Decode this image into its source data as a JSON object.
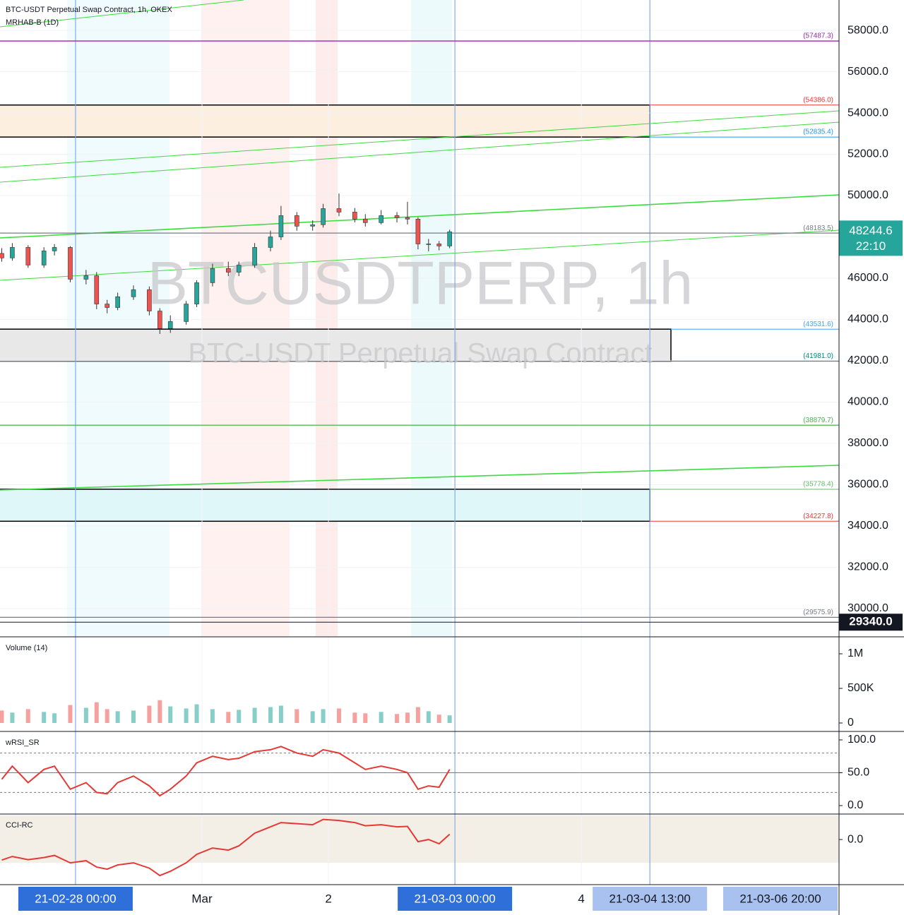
{
  "chart_data": [
    {
      "type": "candlestick",
      "title": "BTC-USDT Perpetual Swap Contract, 1h, OKEX",
      "subtitle": "MRHAB-B (1D)",
      "watermark": "BTCUSDTPERP, 1h",
      "watermark_subtitle": "BTC-USDT Perpetual Swap Contract",
      "x": [
        "21-02-27 10:00",
        "21-02-27 12:00",
        "21-02-27 15:00",
        "21-02-27 18:00",
        "21-02-27 20:00",
        "21-02-27 23:00",
        "21-02-28 02:00",
        "21-02-28 04:00",
        "21-02-28 06:00",
        "21-02-28 08:00",
        "21-02-28 11:00",
        "21-02-28 14:00",
        "21-02-28 16:00",
        "21-02-28 18:00",
        "21-02-28 21:00",
        "21-02-28 23:00",
        "21-03-01 02:00",
        "21-03-01 05:00",
        "21-03-01 07:00",
        "21-03-01 10:00",
        "21-03-01 13:00",
        "21-03-01 15:00",
        "21-03-01 18:00",
        "21-03-01 21:00",
        "21-03-01 23:00",
        "21-03-02 02:00",
        "21-03-02 05:00",
        "21-03-02 07:00",
        "21-03-02 10:00",
        "21-03-02 13:00",
        "21-03-02 15:00",
        "21-03-02 17:00",
        "21-03-02 19:00",
        "21-03-02 21:00",
        "21-03-02 23:00"
      ],
      "open": [
        47200,
        46980,
        47490,
        46635,
        47320,
        47490,
        45950,
        46120,
        44750,
        44580,
        45100,
        45440,
        44410,
        43560,
        43900,
        44750,
        45780,
        46470,
        46290,
        46630,
        47490,
        48000,
        49030,
        48520,
        48590,
        49370,
        49200,
        48860,
        48690,
        49030,
        48930,
        48860,
        47660,
        47660,
        47560
      ],
      "high": [
        47450,
        47700,
        47600,
        47500,
        47650,
        47550,
        46400,
        46300,
        44950,
        45300,
        45650,
        45600,
        44550,
        44200,
        44900,
        45900,
        46700,
        46800,
        46800,
        47700,
        48300,
        49500,
        49200,
        48800,
        49600,
        50100,
        49400,
        49100,
        49300,
        49200,
        49700,
        48950,
        47900,
        47800,
        48350
      ],
      "low": [
        46800,
        46850,
        46500,
        46500,
        47100,
        45800,
        45700,
        44500,
        44300,
        44450,
        44950,
        44200,
        43300,
        43350,
        43750,
        44600,
        45600,
        46100,
        46100,
        46500,
        47300,
        47850,
        48300,
        48300,
        48450,
        49000,
        48700,
        48500,
        48600,
        48700,
        48600,
        47400,
        47300,
        47350,
        47450
      ],
      "close": [
        46980,
        47490,
        46635,
        47320,
        47490,
        45950,
        46120,
        44750,
        44580,
        45100,
        45440,
        44410,
        43560,
        43900,
        44750,
        45780,
        46470,
        46290,
        46630,
        47490,
        48000,
        49030,
        48520,
        48590,
        49370,
        49200,
        48860,
        48690,
        49030,
        48930,
        48860,
        47660,
        47660,
        47560,
        48244.6
      ],
      "up_color": "#26a69a",
      "down_color": "#ef5350",
      "xlim": [
        "21-02-27 09:40",
        "21-03-06 00:54"
      ],
      "xticks": [
        "21-02-28 00:00",
        {
          "value": "21-03-01 00:00",
          "label": "Mar"
        },
        {
          "value": "21-03-02 00:00",
          "label": "2"
        },
        "21-03-03 00:00",
        {
          "value": "21-03-04 00:00",
          "label": "4"
        },
        "21-03-04 13:00"
      ],
      "time_label": "21-03-06 20:00",
      "vertical_lines": [
        "21-02-28 00:00",
        "21-03-03 00:00",
        "21-03-04 13:00"
      ],
      "ylim": [
        28665,
        59472
      ],
      "yticks": [
        {
          "value": 30000,
          "label": "30000.0"
        },
        {
          "value": 32000,
          "label": "32000.0"
        },
        {
          "value": 34000,
          "label": "34000.0"
        },
        {
          "value": 36000,
          "label": "36000.0"
        },
        {
          "value": 38000,
          "label": "38000.0"
        },
        {
          "value": 40000,
          "label": "40000.0"
        },
        {
          "value": 42000,
          "label": "42000.0"
        },
        {
          "value": 44000,
          "label": "44000.0"
        },
        {
          "value": 46000,
          "label": "46000.0"
        },
        {
          "value": 48000,
          "label": "48000.0"
        },
        {
          "value": 50000,
          "label": "50000.0"
        },
        {
          "value": 52000,
          "label": "52000.0"
        },
        {
          "value": 54000,
          "label": "54000.0"
        },
        {
          "value": 56000,
          "label": "56000.0"
        },
        {
          "value": 58000,
          "label": "58000.0"
        }
      ],
      "grid": true,
      "levels": [
        {
          "value": 57487.3,
          "label": "(57487.3)",
          "color": "#9c27b0"
        },
        {
          "value": 54386.0,
          "label": "(54386.0)",
          "color": "#e53935"
        },
        {
          "value": 52835.4,
          "label": "(52835.4)",
          "color": "#2196f3"
        },
        {
          "value": 48183.5,
          "label": "(48183.5)",
          "color": "#787b86"
        },
        {
          "value": 43531.6,
          "label": "(43531.6)",
          "color": "#42a5f5"
        },
        {
          "value": 41981.0,
          "label": "(41981.0)",
          "color": "#00897b"
        },
        {
          "value": 38879.7,
          "label": "(38879.7)",
          "color": "#4caf50"
        },
        {
          "value": 35778.4,
          "label": "(35778.4)",
          "color": "#66bb6a"
        },
        {
          "value": 34227.8,
          "label": "(34227.8)",
          "color": "#e53935"
        },
        {
          "value": 29575.9,
          "label": "(29575.9)",
          "color": "#787b86"
        }
      ],
      "zones": [
        {
          "low": 52835.4,
          "high": 54386.0,
          "end": "21-03-04 13:00",
          "color": "#fdefe0"
        },
        {
          "low": 41981.0,
          "high": 43531.6,
          "end": "21-03-04 17:00",
          "color": "#e8e8e8"
        },
        {
          "low": 34227.8,
          "high": 35778.4,
          "end": "21-03-04 13:00",
          "color": "#e0f7fa"
        }
      ],
      "last_price": 48244.6,
      "countdown": "22:10",
      "crosshair_price": {
        "value": 29340,
        "label": "29340.0"
      }
    },
    {
      "type": "bar",
      "title": "Volume (14)",
      "values": [
        180000,
        150000,
        200000,
        160000,
        140000,
        260000,
        220000,
        300000,
        200000,
        170000,
        180000,
        250000,
        330000,
        240000,
        210000,
        270000,
        200000,
        160000,
        190000,
        220000,
        230000,
        250000,
        200000,
        170000,
        200000,
        210000,
        150000,
        140000,
        160000,
        130000,
        150000,
        230000,
        170000,
        120000,
        110000
      ],
      "ylim": [
        -112000,
        1235000
      ],
      "yticks": [
        0,
        {
          "value": 500000,
          "label": "500K"
        },
        {
          "value": 1000000,
          "label": "1M"
        }
      ]
    },
    {
      "type": "line",
      "title": "wRSI_SR",
      "color": "#e53935",
      "values": [
        40,
        60,
        35,
        55,
        60,
        25,
        35,
        20,
        18,
        35,
        45,
        30,
        15,
        25,
        45,
        65,
        75,
        70,
        72,
        82,
        85,
        90,
        80,
        75,
        85,
        80,
        65,
        55,
        60,
        55,
        50,
        25,
        30,
        28,
        55
      ],
      "ylim": [
        -11.8,
        111.8
      ],
      "yticks": [
        {
          "value": 0,
          "label": "0.0"
        },
        {
          "value": 50,
          "label": "50.0"
        },
        {
          "value": 100,
          "label": "100.0"
        }
      ],
      "levels": [
        80,
        50,
        20
      ]
    },
    {
      "type": "line",
      "title": "CCI-RC",
      "color": "#e53935",
      "values": [
        -97,
        -80,
        -95,
        -85,
        -75,
        -110,
        -100,
        -130,
        -140,
        -120,
        -110,
        -135,
        -170,
        -150,
        -110,
        -70,
        -40,
        -50,
        -30,
        30,
        60,
        80,
        75,
        70,
        95,
        90,
        80,
        65,
        70,
        60,
        62,
        -10,
        0,
        -20,
        25
      ],
      "ylim": [
        -213,
        117
      ],
      "yticks": [
        {
          "value": 0,
          "label": "0.0"
        }
      ]
    }
  ]
}
